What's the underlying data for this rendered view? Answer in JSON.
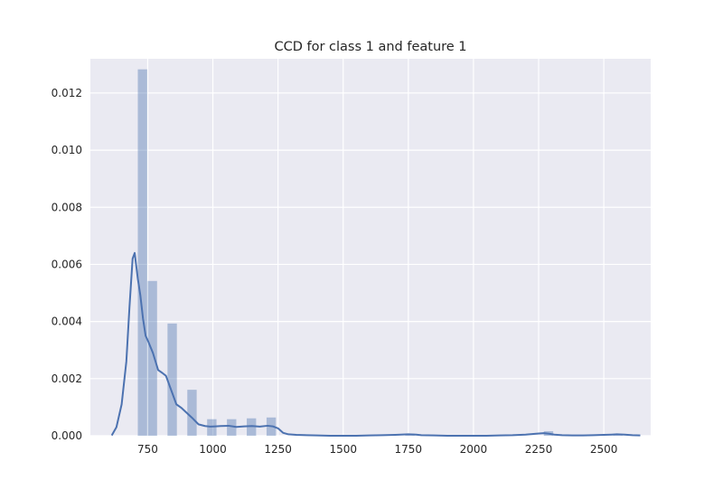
{
  "chart_data": {
    "type": "bar",
    "title": "CCD for class 1 and feature 1",
    "xlabel": "",
    "ylabel": "",
    "xlim": [
      530,
      2680
    ],
    "ylim": [
      0,
      0.0132
    ],
    "x_ticks": [
      750,
      1000,
      1250,
      1500,
      1750,
      2000,
      2250,
      2500
    ],
    "y_ticks": [
      0.0,
      0.002,
      0.004,
      0.006,
      0.008,
      0.01,
      0.012
    ],
    "y_tick_labels": [
      "0.000",
      "0.002",
      "0.004",
      "0.006",
      "0.008",
      "0.010",
      "0.012"
    ],
    "grid": true,
    "background_color": "#EAEAF2",
    "hist_color": "#4C72B0",
    "hist_alpha": 0.4,
    "line_color": "#4C72B0",
    "histogram": {
      "bins": [
        {
          "x0": 712,
          "x1": 750,
          "density": 0.01283
        },
        {
          "x0": 750,
          "x1": 788,
          "density": 0.00542
        },
        {
          "x0": 788,
          "x1": 826,
          "density": 0.0
        },
        {
          "x0": 826,
          "x1": 864,
          "density": 0.00393
        },
        {
          "x0": 864,
          "x1": 902,
          "density": 0.0
        },
        {
          "x0": 902,
          "x1": 940,
          "density": 0.00161
        },
        {
          "x0": 940,
          "x1": 978,
          "density": 0.0
        },
        {
          "x0": 978,
          "x1": 1016,
          "density": 0.00058
        },
        {
          "x0": 1016,
          "x1": 1054,
          "density": 0.0
        },
        {
          "x0": 1054,
          "x1": 1092,
          "density": 0.00058
        },
        {
          "x0": 1092,
          "x1": 1130,
          "density": 0.0
        },
        {
          "x0": 1130,
          "x1": 1168,
          "density": 0.00061
        },
        {
          "x0": 1168,
          "x1": 1206,
          "density": 0.0
        },
        {
          "x0": 1206,
          "x1": 1244,
          "density": 0.00064
        },
        {
          "x0": 1244,
          "x1": 1282,
          "density": 0.0
        },
        {
          "x0": 1282,
          "x1": 1320,
          "density": 0.0
        },
        {
          "x0": 1320,
          "x1": 1358,
          "density": 5e-05
        },
        {
          "x0": 1738,
          "x1": 1776,
          "density": 7e-05
        },
        {
          "x0": 2270,
          "x1": 2308,
          "density": 0.00016
        },
        {
          "x0": 2536,
          "x1": 2574,
          "density": 4e-05
        }
      ]
    },
    "kde": {
      "x": [
        612,
        630,
        650,
        668,
        680,
        692,
        700,
        712,
        722,
        732,
        742,
        752,
        770,
        790,
        806,
        820,
        840,
        860,
        880,
        900,
        920,
        945,
        970,
        990,
        1010,
        1030,
        1060,
        1090,
        1120,
        1150,
        1180,
        1210,
        1230,
        1250,
        1270,
        1290,
        1320,
        1360,
        1400,
        1450,
        1500,
        1550,
        1600,
        1650,
        1700,
        1750,
        1780,
        1800,
        1850,
        1900,
        1950,
        2000,
        2050,
        2100,
        2150,
        2200,
        2240,
        2270,
        2290,
        2310,
        2340,
        2380,
        2420,
        2460,
        2500,
        2530,
        2550,
        2580,
        2610,
        2640
      ],
      "y": [
        1e-05,
        0.0003,
        0.0011,
        0.0026,
        0.0045,
        0.0062,
        0.0064,
        0.0055,
        0.0049,
        0.0041,
        0.0035,
        0.0033,
        0.0029,
        0.0023,
        0.0022,
        0.0021,
        0.0016,
        0.0011,
        0.00097,
        0.0008,
        0.00063,
        0.0004,
        0.00034,
        0.00032,
        0.00033,
        0.00034,
        0.00035,
        0.00031,
        0.00033,
        0.00034,
        0.00032,
        0.00035,
        0.00033,
        0.00026,
        0.0001,
        5e-05,
        3e-05,
        2e-05,
        1e-05,
        0.0,
        0.0,
        0.0,
        1e-05,
        2e-05,
        3e-05,
        5e-05,
        4e-05,
        2e-05,
        1e-05,
        0.0,
        0.0,
        0.0,
        0.0,
        1e-05,
        2e-05,
        4e-05,
        7e-05,
        9e-05,
        7e-05,
        4e-05,
        2e-05,
        1e-05,
        1e-05,
        2e-05,
        3e-05,
        4e-05,
        5e-05,
        4e-05,
        2e-05,
        1e-05
      ]
    }
  }
}
